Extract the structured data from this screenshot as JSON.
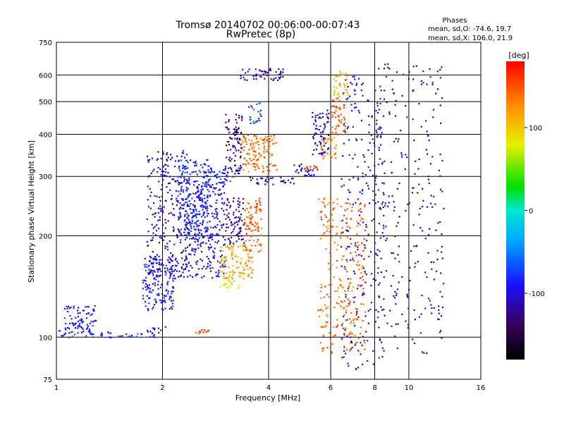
{
  "chart_data": {
    "type": "scatter",
    "title": "Tromsø 20140702 00:06:00-00:07:43",
    "subtitle": "RwPretec (8p)",
    "xlabel": "Frequency [MHz]",
    "ylabel": "Stationary phase Virtual Height [km]",
    "x_scale": "log",
    "y_scale": "log",
    "xlim": [
      1,
      16
    ],
    "ylim": [
      75,
      750
    ],
    "x_ticks": [
      1,
      2,
      4,
      6,
      8,
      10,
      16
    ],
    "y_ticks": [
      75,
      100,
      200,
      300,
      400,
      500,
      600,
      750
    ],
    "x_grid": [
      2,
      4,
      6,
      8,
      10
    ],
    "y_grid": [
      100,
      200,
      300,
      400,
      500,
      600
    ],
    "stats": {
      "heading": "Phases",
      "line_o": "mean, sd,O: -74.6, 19.7",
      "line_x": "mean, sd,X: 106.0, 21.9"
    },
    "colorbar": {
      "label": "[deg]",
      "min": -180,
      "max": 180,
      "ticks": [
        100,
        0,
        -100
      ]
    },
    "point_groups": [
      {
        "freq": [
          1.0,
          1.45
        ],
        "height": [
          100,
          105
        ],
        "phase": -80
      },
      {
        "freq": [
          1.05,
          1.3
        ],
        "height": [
          105,
          125
        ],
        "phase": -90
      },
      {
        "freq": [
          1.45,
          1.9
        ],
        "height": [
          100,
          103
        ],
        "phase": -75
      },
      {
        "freq": [
          1.8,
          2.05
        ],
        "height": [
          103,
          108
        ],
        "phase": -100
      },
      {
        "freq": [
          1.75,
          2.15
        ],
        "height": [
          120,
          175
        ],
        "phase": -85
      },
      {
        "freq": [
          1.8,
          2.35
        ],
        "height": [
          150,
          360
        ],
        "phase": -110
      },
      {
        "freq": [
          2.2,
          2.7
        ],
        "height": [
          195,
          340
        ],
        "phase": -80
      },
      {
        "freq": [
          2.3,
          3.0
        ],
        "height": [
          150,
          290
        ],
        "phase": -100
      },
      {
        "freq": [
          2.6,
          3.1
        ],
        "height": [
          280,
          320
        ],
        "phase": -85
      },
      {
        "freq": [
          3.0,
          3.35
        ],
        "height": [
          300,
          460
        ],
        "phase": -125
      },
      {
        "freq": [
          3.0,
          3.4
        ],
        "height": [
          190,
          260
        ],
        "phase": -120
      },
      {
        "freq": [
          3.3,
          4.2
        ],
        "height": [
          310,
          400
        ],
        "phase": 140
      },
      {
        "freq": [
          3.5,
          3.8
        ],
        "height": [
          430,
          500
        ],
        "phase": -70
      },
      {
        "freq": [
          3.3,
          4.4
        ],
        "height": [
          580,
          630
        ],
        "phase": -110
      },
      {
        "freq": [
          2.9,
          3.6
        ],
        "height": [
          150,
          190
        ],
        "phase": 120
      },
      {
        "freq": [
          2.9,
          3.3
        ],
        "height": [
          140,
          150
        ],
        "phase": 80
      },
      {
        "freq": [
          3.4,
          3.8
        ],
        "height": [
          180,
          260
        ],
        "phase": 145
      },
      {
        "freq": [
          2.4,
          2.7
        ],
        "height": [
          103,
          106
        ],
        "phase": 150
      },
      {
        "freq": [
          3.5,
          4.7
        ],
        "height": [
          285,
          300
        ],
        "phase": -110
      },
      {
        "freq": [
          4.7,
          5.4
        ],
        "height": [
          300,
          330
        ],
        "phase": -100
      },
      {
        "freq": [
          5.0,
          5.5
        ],
        "height": [
          315,
          325
        ],
        "phase": 160
      },
      {
        "freq": [
          5.3,
          5.9
        ],
        "height": [
          350,
          480
        ],
        "phase": -105
      },
      {
        "freq": [
          5.6,
          6.2
        ],
        "height": [
          340,
          400
        ],
        "phase": 125
      },
      {
        "freq": [
          6.0,
          6.6
        ],
        "height": [
          400,
          520
        ],
        "phase": 150
      },
      {
        "freq": [
          6.1,
          6.7
        ],
        "height": [
          520,
          620
        ],
        "phase": 110
      },
      {
        "freq": [
          6.4,
          8.5
        ],
        "height": [
          80,
          600
        ],
        "phase": -100
      },
      {
        "freq": [
          8.0,
          12.5
        ],
        "height": [
          90,
          650
        ],
        "phase": -110
      },
      {
        "freq": [
          5.5,
          7.5
        ],
        "height": [
          90,
          260
        ],
        "phase": 140
      }
    ]
  }
}
